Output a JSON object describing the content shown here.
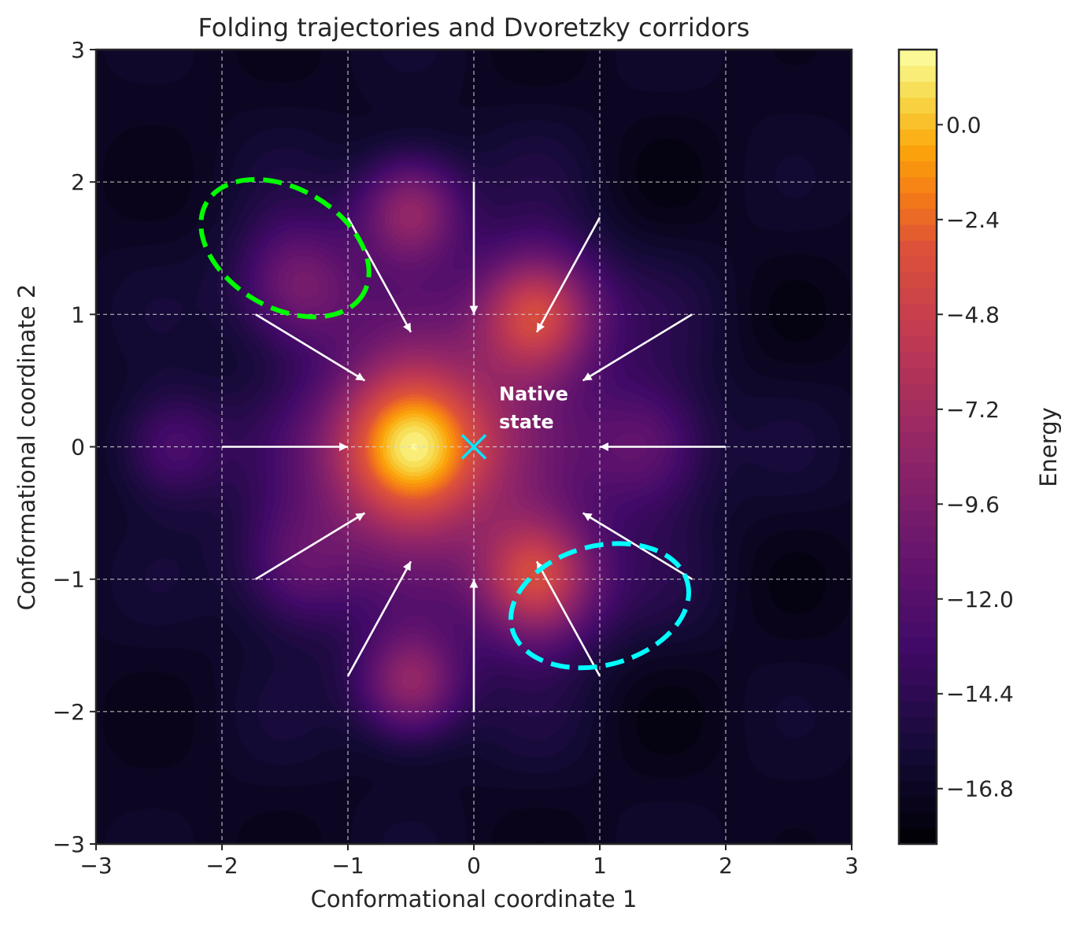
{
  "chart_data": {
    "type": "heatmap",
    "title": "Folding trajectories and Dvoretzky corridors",
    "xlabel": "Conformational coordinate 1",
    "ylabel": "Conformational coordinate 2",
    "xlim": [
      -3,
      3
    ],
    "ylim": [
      -3,
      3
    ],
    "x_ticks": [
      -3,
      -2,
      -1,
      0,
      1,
      2,
      3
    ],
    "y_ticks": [
      -3,
      -2,
      -1,
      0,
      1,
      2,
      3
    ],
    "x_tick_labels": [
      "−3",
      "−2",
      "−1",
      "0",
      "1",
      "2",
      "3"
    ],
    "y_tick_labels": [
      "−3",
      "−2",
      "−1",
      "0",
      "1",
      "2",
      "3"
    ],
    "grid": true,
    "colormap": "inferno",
    "colorbar": {
      "label": "Energy",
      "range": [
        -18.2,
        1.9
      ],
      "ticks": [
        0.0,
        -2.4,
        -4.8,
        -7.2,
        -9.6,
        -12.0,
        -14.4,
        -16.8
      ],
      "tick_labels": [
        "0.0",
        "−2.4",
        "−4.8",
        "−7.2",
        "−9.6",
        "−12.0",
        "−14.4",
        "−16.8"
      ]
    },
    "native_state": {
      "x": 0,
      "y": 0,
      "label_line1": "Native",
      "label_line2": "state",
      "marker_color": "#00e5ff"
    },
    "trajectories": [
      {
        "x0": 2.0,
        "y0": 0.0,
        "x1": 1.0,
        "y1": 0.0
      },
      {
        "x0": 1.732,
        "y0": 1.0,
        "x1": 0.866,
        "y1": 0.5
      },
      {
        "x0": 1.0,
        "y0": 1.732,
        "x1": 0.5,
        "y1": 0.866
      },
      {
        "x0": 0.0,
        "y0": 2.0,
        "x1": 0.0,
        "y1": 1.0
      },
      {
        "x0": -1.0,
        "y0": 1.732,
        "x1": -0.5,
        "y1": 0.866
      },
      {
        "x0": -1.732,
        "y0": 1.0,
        "x1": -0.866,
        "y1": 0.5
      },
      {
        "x0": -2.0,
        "y0": 0.0,
        "x1": -1.0,
        "y1": 0.0
      },
      {
        "x0": -1.732,
        "y0": -1.0,
        "x1": -0.866,
        "y1": -0.5
      },
      {
        "x0": -1.0,
        "y0": -1.732,
        "x1": -0.5,
        "y1": -0.866
      },
      {
        "x0": 0.0,
        "y0": -2.0,
        "x1": 0.0,
        "y1": -1.0
      },
      {
        "x0": 1.0,
        "y0": -1.732,
        "x1": 0.5,
        "y1": -0.866
      },
      {
        "x0": 1.732,
        "y0": -1.0,
        "x1": 0.866,
        "y1": -0.5
      }
    ],
    "corridors": [
      {
        "cx": -1.5,
        "cy": 1.5,
        "rx": 0.72,
        "ry": 0.45,
        "angle_deg": -30,
        "color": "#00ff00"
      },
      {
        "cx": 1.0,
        "cy": -1.2,
        "rx": 0.72,
        "ry": 0.45,
        "angle_deg": 15,
        "color": "#00ffff"
      }
    ],
    "energy_model": {
      "base": {
        "amplitude": 1.0,
        "sigma": 0.9
      },
      "wells": [
        {
          "x": -0.5,
          "y": 0.0,
          "depth": 6.0,
          "sigma": 0.45
        },
        {
          "x": 0.5,
          "y": 1.0,
          "depth": 4.5,
          "sigma": 0.35
        },
        {
          "x": 0.5,
          "y": -1.0,
          "depth": 4.5,
          "sigma": 0.35
        },
        {
          "x": -0.5,
          "y": 1.8,
          "depth": 3.0,
          "sigma": 0.3
        },
        {
          "x": -0.5,
          "y": -1.8,
          "depth": 3.0,
          "sigma": 0.3
        },
        {
          "x": -1.4,
          "y": 1.2,
          "depth": 2.5,
          "sigma": 0.35
        },
        {
          "x": -1.4,
          "y": -0.9,
          "depth": 2.0,
          "sigma": 0.35
        },
        {
          "x": 1.4,
          "y": 0.0,
          "depth": 2.0,
          "sigma": 0.35
        },
        {
          "x": -2.4,
          "y": 0.0,
          "depth": 1.6,
          "sigma": 0.3
        }
      ],
      "wave": {
        "amplitude": 0.8,
        "frequency": 3.0
      }
    }
  }
}
